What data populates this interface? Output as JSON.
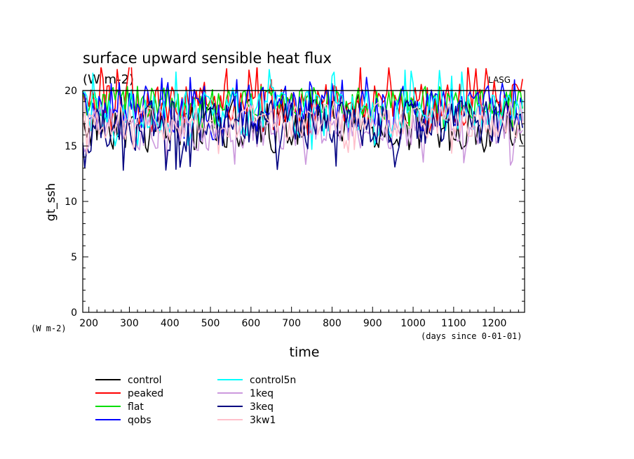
{
  "chart_data": {
    "type": "line",
    "title": "surface upward sensible heat flux",
    "units": "(W m-2)",
    "ylabel": "gt_ssh",
    "xlabel": "time",
    "y_unit_label": "(W m-2)",
    "x_unit_label": "(days since 0-01-01)",
    "watermark": "LASG",
    "xlim": [
      185,
      1275
    ],
    "ylim": [
      0,
      22
    ],
    "x_ticks": [
      200,
      300,
      400,
      500,
      600,
      700,
      800,
      900,
      1000,
      1100,
      1200
    ],
    "y_ticks": [
      0,
      5,
      10,
      15,
      20
    ],
    "reference_line": 20,
    "sample_step_days": 5,
    "series": [
      {
        "name": "control",
        "color": "#000000",
        "mean": 17.0,
        "amp": 1.7,
        "min": 14.4,
        "max": 19.8
      },
      {
        "name": "peaked",
        "color": "#ff0000",
        "mean": 18.8,
        "amp": 1.6,
        "min": 16.0,
        "max": 22.4
      },
      {
        "name": "flat",
        "color": "#00dd00",
        "mean": 18.9,
        "amp": 1.0,
        "min": 16.5,
        "max": 20.4
      },
      {
        "name": "qobs",
        "color": "#0000ff",
        "mean": 18.3,
        "amp": 1.5,
        "min": 15.5,
        "max": 21.2
      },
      {
        "name": "control5n",
        "color": "#00ffff",
        "mean": 18.0,
        "amp": 1.5,
        "min": 14.5,
        "max": 21.9
      },
      {
        "name": "1keq",
        "color": "#cc99dd",
        "mean": 16.6,
        "amp": 1.4,
        "min": 13.2,
        "max": 18.8
      },
      {
        "name": "3keq",
        "color": "#000080",
        "mean": 16.8,
        "amp": 1.6,
        "min": 12.7,
        "max": 19.5
      },
      {
        "name": "3kw1",
        "color": "#ffc0cb",
        "mean": 17.2,
        "amp": 1.2,
        "min": 14.2,
        "max": 19.0
      }
    ],
    "legend": {
      "columns": [
        [
          "control",
          "peaked",
          "flat",
          "qobs"
        ],
        [
          "control5n",
          "1keq",
          "3keq",
          "3kw1"
        ]
      ]
    }
  }
}
